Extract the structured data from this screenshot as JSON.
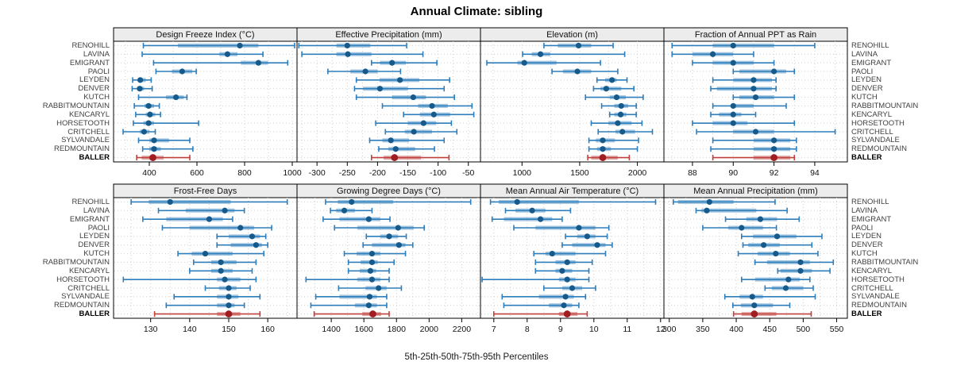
{
  "title": "Annual Climate: sibling",
  "caption": "5th-25th-50th-75th-95th Percentiles",
  "sites": [
    "RENOHILL",
    "LAVINA",
    "EMIGRANT",
    "PAOLI",
    "LEYDEN",
    "DENVER",
    "KUTCH",
    "RABBITMOUNTAIN",
    "KENCARYL",
    "HORSETOOTH",
    "CRITCHELL",
    "SYLVANDALE",
    "REDMOUNTAIN",
    "BALLER"
  ],
  "highlight_site": "BALLER",
  "colors": {
    "series_blue": "#2e7ebc",
    "series_blue_dark": "#155a8a",
    "series_red": "#c0413b",
    "series_red_dark": "#a21d21",
    "grid": "#cfcfcf",
    "strip_bg": "#ececec",
    "border": "#000000",
    "site_label": "#3f3f3f"
  },
  "chart_data": {
    "type": "dot-interval",
    "note": "values are [5th,25th,50th,75th,95th] percentiles per site, sites ordered as in sites[]",
    "legend": "none",
    "grid": "dotted",
    "panels": [
      {
        "title": "Design Freeze Index (°C)",
        "xlim": [
          250,
          1020
        ],
        "ticks": [
          400,
          600,
          800,
          1000
        ],
        "grid_step": 100,
        "values": [
          [
            375,
            520,
            780,
            858,
            1010
          ],
          [
            370,
            694,
            728,
            770,
            877
          ],
          [
            418,
            784,
            858,
            898,
            981
          ],
          [
            428,
            495,
            538,
            580,
            597
          ],
          [
            330,
            352,
            362,
            385,
            408
          ],
          [
            328,
            348,
            360,
            378,
            412
          ],
          [
            355,
            470,
            512,
            545,
            558
          ],
          [
            337,
            380,
            397,
            420,
            442
          ],
          [
            343,
            385,
            403,
            425,
            447
          ],
          [
            333,
            375,
            397,
            420,
            607
          ],
          [
            290,
            360,
            378,
            400,
            425
          ],
          [
            355,
            400,
            420,
            483,
            570
          ],
          [
            372,
            400,
            420,
            448,
            583
          ],
          [
            347,
            368,
            415,
            460,
            570
          ]
        ]
      },
      {
        "title": "Effective Precipitation (mm)",
        "xlim": [
          -333,
          -30
        ],
        "ticks": [
          -300,
          -250,
          -200,
          -150,
          -100,
          -50
        ],
        "grid_step": 25,
        "values": [
          [
            -330,
            -268,
            -250,
            -212,
            -152
          ],
          [
            -325,
            -268,
            -249,
            -210,
            -125
          ],
          [
            -210,
            -196,
            -176,
            -153,
            -102
          ],
          [
            -282,
            -245,
            -220,
            -200,
            -162
          ],
          [
            -235,
            -197,
            -163,
            -131,
            -81
          ],
          [
            -238,
            -224,
            -196,
            -150,
            -90
          ],
          [
            -235,
            -176,
            -141,
            -120,
            -73
          ],
          [
            -192,
            -133,
            -110,
            -84,
            -44
          ],
          [
            -157,
            -130,
            -107,
            -80,
            -41
          ],
          [
            -203,
            -150,
            -124,
            -103,
            -78
          ],
          [
            -187,
            -155,
            -140,
            -110,
            -69
          ],
          [
            -213,
            -192,
            -178,
            -148,
            -90
          ],
          [
            -198,
            -182,
            -170,
            -138,
            -106
          ],
          [
            -210,
            -190,
            -172,
            -128,
            -82
          ]
        ]
      },
      {
        "title": "Elevation (m)",
        "xlim": [
          640,
          2230
        ],
        "ticks": [
          1000,
          1500,
          2000
        ],
        "grid_step": 250,
        "values": [
          [
            1190,
            1310,
            1490,
            1600,
            1790
          ],
          [
            1005,
            1085,
            1160,
            1245,
            1890
          ],
          [
            695,
            960,
            1020,
            1300,
            1680
          ],
          [
            1260,
            1355,
            1480,
            1600,
            1830
          ],
          [
            1650,
            1720,
            1780,
            1820,
            1910
          ],
          [
            1620,
            1680,
            1730,
            1860,
            1970
          ],
          [
            1550,
            1760,
            1820,
            1900,
            2050
          ],
          [
            1690,
            1800,
            1860,
            1920,
            1990
          ],
          [
            1760,
            1800,
            1855,
            1905,
            1990
          ],
          [
            1600,
            1750,
            1830,
            1950,
            2040
          ],
          [
            1660,
            1810,
            1870,
            1980,
            2130
          ],
          [
            1580,
            1640,
            1700,
            1805,
            2010
          ],
          [
            1580,
            1650,
            1700,
            1770,
            2000
          ],
          [
            1570,
            1600,
            1700,
            1830,
            1930
          ]
        ]
      },
      {
        "title": "Fraction of Annual PPT as Rain",
        "xlim": [
          86.6,
          95.6
        ],
        "ticks": [
          88,
          90,
          92,
          94
        ],
        "grid_step": 1,
        "values": [
          [
            87,
            89,
            90,
            92,
            94
          ],
          [
            87,
            88,
            89,
            90,
            91
          ],
          [
            88,
            89,
            90,
            91,
            92
          ],
          [
            90,
            90.3,
            92,
            92.6,
            93
          ],
          [
            89,
            90,
            91,
            91.9,
            92.1
          ],
          [
            88.9,
            89.2,
            91,
            91.9,
            92.1
          ],
          [
            90,
            90.3,
            91.1,
            92,
            93
          ],
          [
            89,
            89.9,
            90,
            91,
            92.6
          ],
          [
            88.9,
            89.3,
            90,
            90.4,
            91.1
          ],
          [
            88,
            89,
            90,
            90.7,
            93
          ],
          [
            88.2,
            90,
            91.1,
            92,
            95
          ],
          [
            89,
            91,
            92,
            92.8,
            93.1
          ],
          [
            88.9,
            91,
            92,
            92.8,
            93.1
          ],
          [
            89,
            91,
            92,
            92.8,
            93
          ]
        ]
      },
      {
        "title": "Frost-Free Days",
        "xlim": [
          120.5,
          167.5
        ],
        "ticks": [
          130,
          140,
          150,
          160
        ],
        "grid_step": 5,
        "values": [
          [
            125,
            129.5,
            135,
            150.5,
            165
          ],
          [
            132,
            139,
            149,
            151.5,
            154
          ],
          [
            128,
            134,
            145,
            148.5,
            151
          ],
          [
            133,
            140,
            153,
            156.5,
            161
          ],
          [
            147,
            150,
            156,
            158,
            159.5
          ],
          [
            147,
            150.5,
            157,
            158.5,
            160
          ],
          [
            137,
            140.5,
            144,
            151,
            159
          ],
          [
            141,
            145.5,
            148,
            152,
            157
          ],
          [
            140,
            145.5,
            148,
            151,
            156
          ],
          [
            123,
            147,
            149,
            153,
            157
          ],
          [
            144,
            147.5,
            150,
            152,
            155.5
          ],
          [
            136,
            147,
            150,
            152.5,
            158
          ],
          [
            134,
            147,
            150,
            151.5,
            154
          ],
          [
            131,
            147,
            150,
            153,
            158
          ]
        ]
      },
      {
        "title": "Growing Degree Days (°C)",
        "xlim": [
          1190,
          2315
        ],
        "ticks": [
          1400,
          1600,
          1800,
          2000,
          2200
        ],
        "grid_step": 100,
        "values": [
          [
            1365,
            1440,
            1525,
            1780,
            2255
          ],
          [
            1395,
            1430,
            1480,
            1545,
            1650
          ],
          [
            1350,
            1450,
            1630,
            1700,
            1760
          ],
          [
            1420,
            1560,
            1810,
            1905,
            1970
          ],
          [
            1615,
            1700,
            1755,
            1810,
            1860
          ],
          [
            1595,
            1650,
            1815,
            1855,
            1900
          ],
          [
            1480,
            1555,
            1650,
            1700,
            1855
          ],
          [
            1505,
            1580,
            1650,
            1685,
            1785
          ],
          [
            1505,
            1575,
            1640,
            1675,
            1755
          ],
          [
            1245,
            1560,
            1650,
            1700,
            1755
          ],
          [
            1445,
            1610,
            1690,
            1740,
            1830
          ],
          [
            1305,
            1450,
            1635,
            1680,
            1740
          ],
          [
            1275,
            1545,
            1630,
            1680,
            1740
          ],
          [
            1295,
            1590,
            1655,
            1705,
            1755
          ]
        ]
      },
      {
        "title": "Mean Annual Air Temperature (°C)",
        "xlim": [
          6.6,
          12.1
        ],
        "ticks": [
          7,
          8,
          9,
          10,
          11,
          12
        ],
        "grid_step": 0.5,
        "values": [
          [
            6.9,
            7.15,
            7.7,
            9.55,
            11.85
          ],
          [
            7.35,
            7.65,
            8.15,
            8.55,
            9.3
          ],
          [
            6.95,
            7.3,
            8.4,
            8.75,
            9.05
          ],
          [
            7.6,
            8.25,
            9.55,
            10.05,
            10.45
          ],
          [
            9.15,
            9.5,
            9.8,
            10.05,
            10.4
          ],
          [
            9.05,
            9.35,
            10.1,
            10.35,
            10.55
          ],
          [
            8.2,
            8.55,
            8.75,
            9.45,
            10.35
          ],
          [
            8.25,
            8.85,
            9.2,
            9.45,
            9.95
          ],
          [
            8.25,
            8.85,
            9.05,
            9.35,
            9.85
          ],
          [
            6.65,
            8.95,
            9.2,
            9.45,
            9.85
          ],
          [
            8.5,
            9.05,
            9.35,
            9.65,
            10.05
          ],
          [
            7.25,
            8.35,
            9.15,
            9.4,
            9.75
          ],
          [
            7.3,
            8.65,
            9.1,
            9.35,
            9.55
          ],
          [
            7,
            8.95,
            9.2,
            9.5,
            9.8
          ]
        ]
      },
      {
        "title": "Mean Annual Precipitation (mm)",
        "xlim": [
          292,
          566
        ],
        "ticks": [
          300,
          350,
          400,
          450,
          500,
          550
        ],
        "grid_step": 25,
        "values": [
          [
            306,
            313,
            360,
            396,
            458
          ],
          [
            340,
            348,
            356,
            430,
            476
          ],
          [
            384,
            415,
            436,
            461,
            494
          ],
          [
            350,
            388,
            408,
            440,
            460
          ],
          [
            408,
            425,
            461,
            490,
            528
          ],
          [
            410,
            418,
            441,
            465,
            513
          ],
          [
            403,
            432,
            459,
            480,
            522
          ],
          [
            428,
            446,
            496,
            510,
            545
          ],
          [
            462,
            466,
            496,
            513,
            540
          ],
          [
            408,
            428,
            478,
            495,
            510
          ],
          [
            443,
            453,
            474,
            500,
            515
          ],
          [
            383,
            405,
            424,
            440,
            518
          ],
          [
            395,
            407,
            427,
            455,
            480
          ],
          [
            396,
            408,
            427,
            460,
            512
          ]
        ]
      }
    ]
  }
}
